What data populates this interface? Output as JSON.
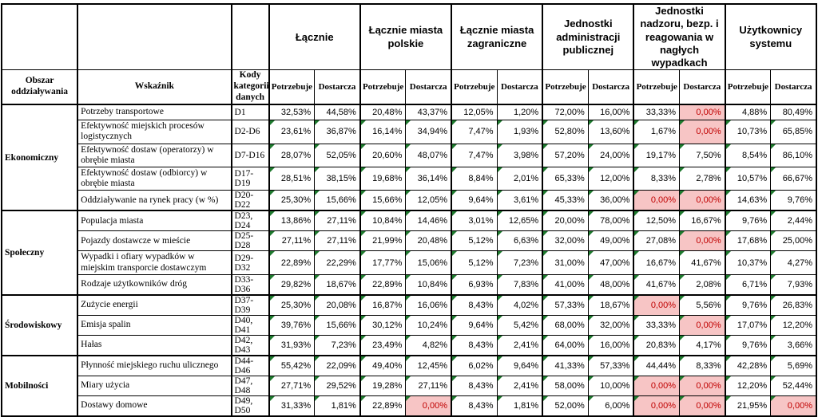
{
  "colors": {
    "pink_bg": "#F7C5C5",
    "pink_text": "#C00000",
    "flag_green": "#1E7A2E",
    "border": "#000000"
  },
  "table": {
    "header": {
      "area_label": "Obszar oddziaływania",
      "indicator_label": "Wskaźnik",
      "codes_label": "Kody kategorii danych",
      "groups": [
        "Łącznie",
        "Łącznie miasta polskie",
        "Łącznie miasta zagraniczne",
        "Jednostki administracji publicznej",
        "Jednostki nadzoru, bezp. i reagowania w nagłych wypadkach",
        "Użytkownicy systemu"
      ],
      "sub": [
        "Potrzebuje",
        "Dostarcza"
      ]
    },
    "sections": [
      {
        "name": "Ekonomiczny",
        "rows": [
          {
            "indicator": "Potrzeby transportowe",
            "codes": "D1",
            "flags": false,
            "pink": [
              9
            ],
            "values": [
              "32,53%",
              "44,58%",
              "20,48%",
              "43,37%",
              "12,05%",
              "1,20%",
              "72,00%",
              "16,00%",
              "33,33%",
              "0,00%",
              "4,88%",
              "80,49%"
            ]
          },
          {
            "indicator": "Efektywność miejskich procesów logistycznych",
            "codes": "D2-D6",
            "flags": true,
            "pink": [
              9
            ],
            "values": [
              "23,61%",
              "36,87%",
              "16,14%",
              "34,94%",
              "7,47%",
              "1,93%",
              "52,80%",
              "13,60%",
              "1,67%",
              "0,00%",
              "10,73%",
              "65,85%"
            ]
          },
          {
            "indicator": "Efektywność dostaw (operatorzy) w obrębie miasta",
            "codes": "D7-D16",
            "flags": true,
            "pink": [],
            "values": [
              "28,07%",
              "52,05%",
              "20,60%",
              "48,07%",
              "7,47%",
              "3,98%",
              "57,20%",
              "24,00%",
              "19,17%",
              "7,50%",
              "8,54%",
              "86,10%"
            ]
          },
          {
            "indicator": "Efektywność dostaw (odbiorcy) w obrębie miasta",
            "codes": "D17-D19",
            "flags": true,
            "pink": [],
            "values": [
              "28,51%",
              "38,15%",
              "19,68%",
              "36,14%",
              "8,84%",
              "2,01%",
              "65,33%",
              "12,00%",
              "8,33%",
              "2,78%",
              "10,57%",
              "66,67%"
            ]
          },
          {
            "indicator": "Oddziaływanie na rynek pracy (w %)",
            "codes": "D20-D22",
            "flags": true,
            "pink": [
              8,
              9
            ],
            "values": [
              "25,30%",
              "15,66%",
              "15,66%",
              "12,05%",
              "9,64%",
              "3,61%",
              "45,33%",
              "36,00%",
              "0,00%",
              "0,00%",
              "14,63%",
              "9,76%"
            ]
          }
        ]
      },
      {
        "name": "Społeczny",
        "rows": [
          {
            "indicator": "Populacja miasta",
            "codes": "D23, D24",
            "flags": true,
            "pink": [],
            "values": [
              "13,86%",
              "27,11%",
              "10,84%",
              "14,46%",
              "3,01%",
              "12,65%",
              "20,00%",
              "78,00%",
              "12,50%",
              "16,67%",
              "9,76%",
              "2,44%"
            ]
          },
          {
            "indicator": "Pojazdy dostawcze w mieście",
            "codes": "D25-D28",
            "flags": true,
            "pink": [
              9
            ],
            "values": [
              "27,11%",
              "27,11%",
              "21,99%",
              "20,48%",
              "5,12%",
              "6,63%",
              "32,00%",
              "49,00%",
              "27,08%",
              "0,00%",
              "17,68%",
              "25,00%"
            ]
          },
          {
            "indicator": "Wypadki i ofiary wypadków w miejskim transporcie dostawczym",
            "codes": "D29-D32",
            "flags": true,
            "pink": [],
            "values": [
              "22,89%",
              "22,29%",
              "17,77%",
              "15,06%",
              "5,12%",
              "7,23%",
              "31,00%",
              "47,00%",
              "16,67%",
              "41,67%",
              "10,37%",
              "4,27%"
            ]
          },
          {
            "indicator": "Rodzaje użytkowników dróg",
            "codes": "D33-D36",
            "flags": true,
            "pink": [],
            "values": [
              "29,82%",
              "18,67%",
              "22,89%",
              "10,84%",
              "6,93%",
              "7,83%",
              "41,00%",
              "48,00%",
              "41,67%",
              "2,08%",
              "6,71%",
              "7,93%"
            ]
          }
        ]
      },
      {
        "name": "Środowiskowy",
        "rows": [
          {
            "indicator": "Zużycie energii",
            "codes": "D37-D39",
            "flags": true,
            "pink": [
              8
            ],
            "values": [
              "25,30%",
              "20,08%",
              "16,87%",
              "16,06%",
              "8,43%",
              "4,02%",
              "57,33%",
              "18,67%",
              "0,00%",
              "5,56%",
              "9,76%",
              "26,83%"
            ]
          },
          {
            "indicator": "Emisja spalin",
            "codes": "D40, D41",
            "flags": true,
            "pink": [
              9
            ],
            "values": [
              "39,76%",
              "15,66%",
              "30,12%",
              "10,24%",
              "9,64%",
              "5,42%",
              "68,00%",
              "32,00%",
              "33,33%",
              "0,00%",
              "17,07%",
              "12,20%"
            ]
          },
          {
            "indicator": "Hałas",
            "codes": "D42, D43",
            "flags": true,
            "pink": [],
            "values": [
              "31,93%",
              "7,23%",
              "23,49%",
              "4,82%",
              "8,43%",
              "2,41%",
              "64,00%",
              "16,00%",
              "20,83%",
              "4,17%",
              "9,76%",
              "3,66%"
            ]
          }
        ]
      },
      {
        "name": "Mobilności",
        "rows": [
          {
            "indicator": "Płynność miejskiego ruchu ulicznego",
            "codes": "D44-D46",
            "flags": true,
            "pink": [],
            "values": [
              "55,42%",
              "22,09%",
              "49,40%",
              "12,45%",
              "6,02%",
              "9,64%",
              "41,33%",
              "57,33%",
              "44,44%",
              "8,33%",
              "42,28%",
              "5,69%"
            ]
          },
          {
            "indicator": "Miary użycia",
            "codes": "D47, D48",
            "flags": true,
            "pink": [
              8,
              9
            ],
            "values": [
              "27,71%",
              "29,52%",
              "19,28%",
              "27,11%",
              "8,43%",
              "2,41%",
              "58,00%",
              "10,00%",
              "0,00%",
              "0,00%",
              "12,20%",
              "52,44%"
            ]
          },
          {
            "indicator": "Dostawy domowe",
            "codes": "D49, D50",
            "flags": true,
            "pink": [
              3,
              8,
              9,
              11
            ],
            "values": [
              "31,33%",
              "1,81%",
              "22,89%",
              "0,00%",
              "8,43%",
              "1,81%",
              "52,00%",
              "6,00%",
              "0,00%",
              "0,00%",
              "21,95%",
              "0,00%"
            ]
          }
        ]
      }
    ]
  }
}
